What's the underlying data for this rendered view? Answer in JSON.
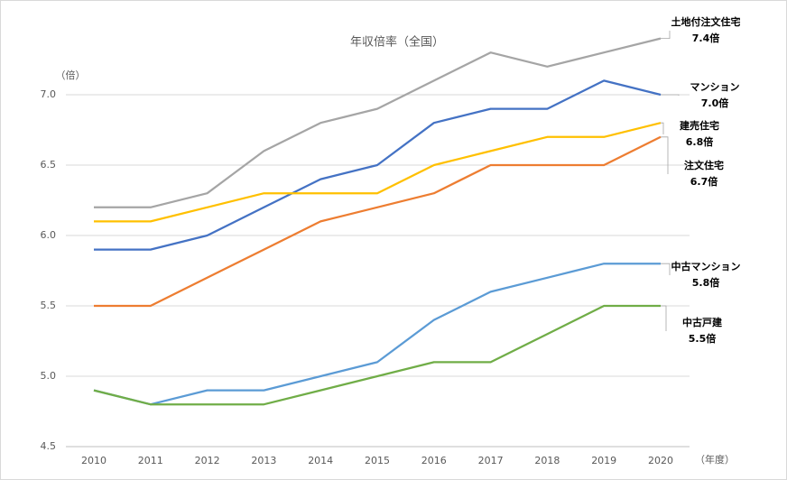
{
  "chart_data": {
    "type": "line",
    "title": "年収倍率（全国）",
    "y_label": "（倍）",
    "x_label": "（年度）",
    "categories": [
      "2010",
      "2011",
      "2012",
      "2013",
      "2014",
      "2015",
      "2016",
      "2017",
      "2018",
      "2019",
      "2020"
    ],
    "ylim": [
      4.5,
      7.5
    ],
    "yticks": [
      {
        "value": 4.5,
        "label": "4.5"
      },
      {
        "value": 5,
        "label": "5.0"
      },
      {
        "value": 5.5,
        "label": "5.5"
      },
      {
        "value": 6,
        "label": "6.0"
      },
      {
        "value": 6.5,
        "label": "6.5"
      },
      {
        "value": 7,
        "label": "7.0"
      }
    ],
    "grid": true,
    "series": [
      {
        "name": "土地付注文住宅",
        "color": "#a5a5a5",
        "values": [
          6.2,
          6.2,
          6.3,
          6.6,
          6.8,
          6.9,
          7.1,
          7.3,
          7.2,
          7.3,
          7.4
        ],
        "value_labels": [
          null,
          null,
          null,
          null,
          null,
          null,
          null,
          null,
          null,
          null,
          "7.4倍"
        ]
      },
      {
        "name": "マンション",
        "color": "#4472c4",
        "values": [
          5.9,
          5.9,
          6.0,
          6.2,
          6.4,
          6.5,
          6.8,
          6.9,
          6.9,
          7.1,
          7.0
        ],
        "value_labels": [
          null,
          null,
          null,
          null,
          null,
          null,
          null,
          null,
          null,
          null,
          "7.0倍"
        ]
      },
      {
        "name": "建売住宅",
        "color": "#ffc000",
        "values": [
          6.1,
          6.1,
          6.2,
          6.3,
          6.3,
          6.3,
          6.5,
          6.6,
          6.7,
          6.7,
          6.8
        ],
        "value_labels": [
          null,
          null,
          null,
          null,
          null,
          null,
          null,
          null,
          null,
          null,
          "6.8倍"
        ]
      },
      {
        "name": "注文住宅",
        "color": "#ed7d31",
        "values": [
          5.5,
          5.5,
          5.7,
          5.9,
          6.1,
          6.2,
          6.3,
          6.5,
          6.5,
          6.5,
          6.7
        ],
        "value_labels": [
          null,
          null,
          null,
          null,
          null,
          null,
          null,
          null,
          null,
          null,
          "6.7倍"
        ]
      },
      {
        "name": "中古マンション",
        "color": "#5b9bd5",
        "values": [
          4.9,
          4.8,
          4.9,
          4.9,
          5.0,
          5.1,
          5.4,
          5.6,
          5.7,
          5.8,
          5.8
        ],
        "value_labels": [
          null,
          null,
          null,
          null,
          null,
          null,
          null,
          null,
          null,
          null,
          "5.8倍"
        ]
      },
      {
        "name": "中古戸建",
        "color": "#70ad47",
        "values": [
          4.9,
          4.8,
          4.8,
          4.8,
          4.9,
          5.0,
          5.1,
          5.1,
          5.3,
          5.5,
          5.5
        ],
        "value_labels": [
          null,
          null,
          null,
          null,
          null,
          null,
          null,
          null,
          null,
          null,
          "5.5倍"
        ]
      }
    ]
  }
}
